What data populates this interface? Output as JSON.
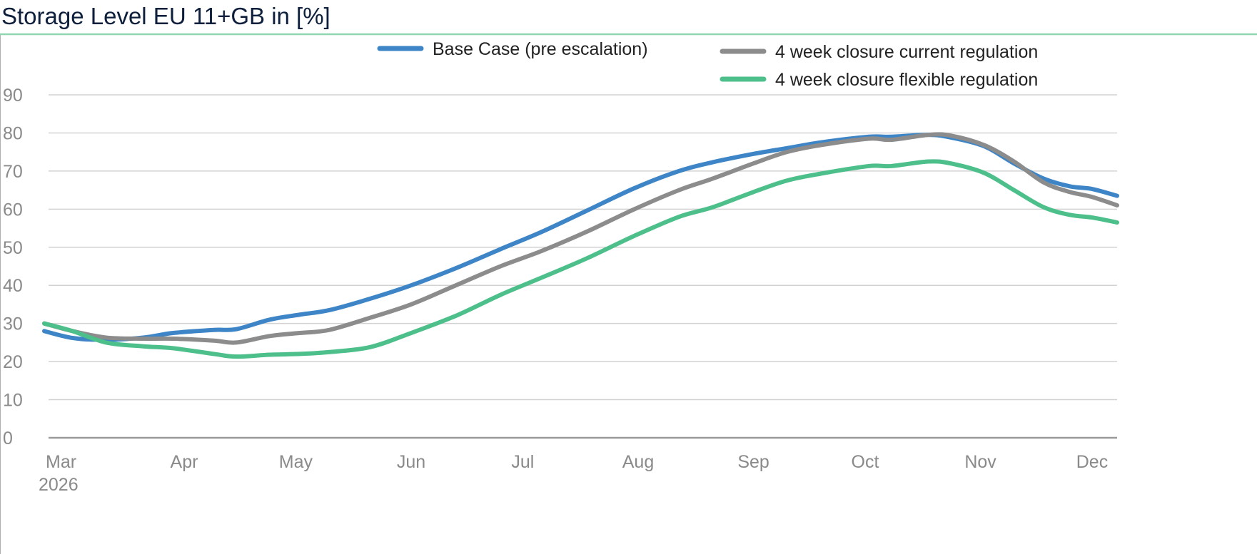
{
  "chart_data": {
    "type": "line",
    "title": "Storage Level EU 11+GB in [%]",
    "xlabel": "",
    "ylabel": "",
    "x_unit": "days since 1 Mar 2026",
    "ylim": [
      0,
      90
    ],
    "yticks": [
      0,
      10,
      20,
      30,
      40,
      50,
      60,
      70,
      80,
      90
    ],
    "xlim": [
      -7,
      282
    ],
    "xticks": [
      {
        "day": 0,
        "label": "Mar",
        "sublabel": "2026"
      },
      {
        "day": 31,
        "label": "Apr"
      },
      {
        "day": 61,
        "label": "May"
      },
      {
        "day": 92,
        "label": "Jun"
      },
      {
        "day": 122,
        "label": "Jul"
      },
      {
        "day": 153,
        "label": "Aug"
      },
      {
        "day": 184,
        "label": "Sep"
      },
      {
        "day": 214,
        "label": "Oct"
      },
      {
        "day": 245,
        "label": "Nov"
      },
      {
        "day": 275,
        "label": "Dec"
      }
    ],
    "grid": true,
    "legend_position": "top-right",
    "x": [
      -7,
      1,
      10,
      20,
      28,
      39,
      45,
      54,
      62,
      70,
      81,
      92,
      104,
      116,
      127,
      139,
      152,
      164,
      173,
      184,
      193,
      202,
      215,
      221,
      231,
      237,
      246,
      254,
      262,
      269,
      275,
      282
    ],
    "series": [
      {
        "name": "Base Case (pre escalation)",
        "color": "#3d85c6",
        "values": [
          28,
          26.2,
          25.7,
          26.3,
          27.5,
          28.3,
          28.5,
          31,
          32.3,
          33.5,
          36.5,
          40,
          44.5,
          49.5,
          54,
          59.5,
          65.5,
          70,
          72.3,
          74.5,
          76,
          77.5,
          79,
          79,
          79.5,
          78.8,
          76.5,
          72,
          68,
          66,
          65.3,
          63.5
        ]
      },
      {
        "name": "4 week closure current regulation",
        "color": "#8c8c8c",
        "values": [
          30,
          28,
          26.3,
          26,
          26,
          25.5,
          25,
          26.7,
          27.5,
          28.3,
          31.5,
          35,
          40,
          45,
          49,
          54,
          60,
          65,
          68,
          72,
          75,
          76.8,
          78.5,
          78.2,
          79.5,
          79.3,
          76.8,
          72.5,
          67,
          64.5,
          63.2,
          61
        ]
      },
      {
        "name": "4 week closure flexible regulation",
        "color": "#4cbf8a",
        "values": [
          30,
          28,
          25,
          24,
          23.5,
          22,
          21.3,
          21.8,
          22,
          22.5,
          23.8,
          27.5,
          32,
          37.5,
          42,
          47,
          53,
          58,
          60.5,
          64.5,
          67.5,
          69.3,
          71.3,
          71.3,
          72.5,
          72,
          69.5,
          65,
          60.5,
          58.5,
          57.8,
          56.5
        ]
      }
    ]
  }
}
